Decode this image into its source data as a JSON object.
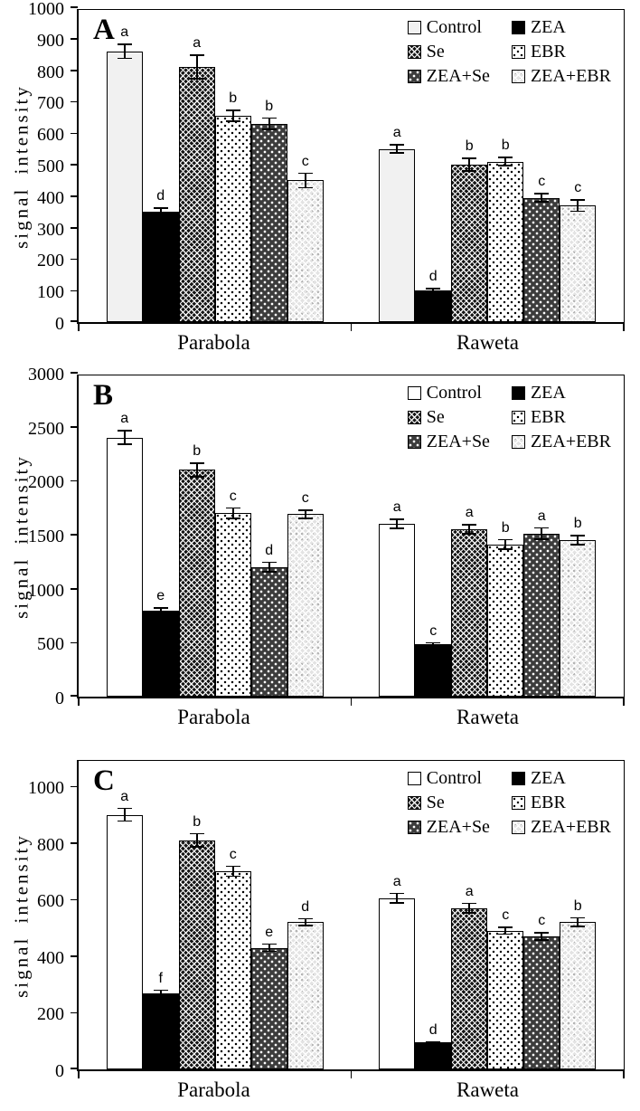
{
  "colors": {
    "ink": "#000000",
    "control_light_fill": "#f1f1f1",
    "dark_dot_fill": "#3c3c3c",
    "light_lattice_fill": "#e3e3e3"
  },
  "chart_data": [
    {
      "type": "bar",
      "panel_label": "A",
      "ylabel": "signal intensity",
      "ylim": [
        0,
        1000
      ],
      "ytick_step": 100,
      "yticks": [
        0,
        100,
        200,
        300,
        400,
        500,
        600,
        700,
        800,
        900,
        1000
      ],
      "categories": [
        "Parabola",
        "Raweta"
      ],
      "legend_position": "top-right",
      "grid": false,
      "series": [
        {
          "name": "Control",
          "pattern": "light-solid",
          "values": [
            860,
            550
          ],
          "errors": [
            25,
            15
          ],
          "sig_letters": [
            "a",
            "a"
          ]
        },
        {
          "name": "ZEA",
          "pattern": "solid-black",
          "values": [
            350,
            100
          ],
          "errors": [
            15,
            8
          ],
          "sig_letters": [
            "d",
            "d"
          ]
        },
        {
          "name": "Se",
          "pattern": "dark-diamond-hatch",
          "values": [
            810,
            500
          ],
          "errors": [
            40,
            22
          ],
          "sig_letters": [
            "a",
            "b"
          ]
        },
        {
          "name": "EBR",
          "pattern": "white-black-dots",
          "values": [
            655,
            510
          ],
          "errors": [
            20,
            15
          ],
          "sig_letters": [
            "b",
            "b"
          ]
        },
        {
          "name": "ZEA+Se",
          "pattern": "dark-white-dots",
          "values": [
            630,
            395
          ],
          "errors": [
            20,
            15
          ],
          "sig_letters": [
            "b",
            "c"
          ]
        },
        {
          "name": "ZEA+EBR",
          "pattern": "light-diamond-lattice",
          "values": [
            450,
            370
          ],
          "errors": [
            25,
            20
          ],
          "sig_letters": [
            "c",
            "c"
          ]
        }
      ]
    },
    {
      "type": "bar",
      "panel_label": "B",
      "ylabel": "signal intensity",
      "ylim": [
        0,
        3000
      ],
      "ytick_step": 500,
      "yticks": [
        0,
        500,
        1000,
        1500,
        2000,
        2500,
        3000
      ],
      "categories": [
        "Parabola",
        "Raweta"
      ],
      "legend_position": "top-right",
      "grid": false,
      "series": [
        {
          "name": "Control",
          "pattern": "white-solid",
          "values": [
            2400,
            1600
          ],
          "errors": [
            70,
            50
          ],
          "sig_letters": [
            "a",
            "a"
          ]
        },
        {
          "name": "ZEA",
          "pattern": "solid-black",
          "values": [
            800,
            490
          ],
          "errors": [
            30,
            15
          ],
          "sig_letters": [
            "e",
            "c"
          ]
        },
        {
          "name": "Se",
          "pattern": "dark-diamond-hatch",
          "values": [
            2100,
            1550
          ],
          "errors": [
            70,
            50
          ],
          "sig_letters": [
            "b",
            "a"
          ]
        },
        {
          "name": "EBR",
          "pattern": "white-black-dots",
          "values": [
            1700,
            1410
          ],
          "errors": [
            55,
            50
          ],
          "sig_letters": [
            "c",
            "b"
          ]
        },
        {
          "name": "ZEA+Se",
          "pattern": "dark-white-dots",
          "values": [
            1200,
            1510
          ],
          "errors": [
            50,
            60
          ],
          "sig_letters": [
            "d",
            "a"
          ]
        },
        {
          "name": "ZEA+EBR",
          "pattern": "light-diamond-lattice",
          "values": [
            1690,
            1450
          ],
          "errors": [
            45,
            50
          ],
          "sig_letters": [
            "c",
            "b"
          ]
        }
      ]
    },
    {
      "type": "bar",
      "panel_label": "C",
      "ylabel": "signal intensity",
      "ylim": [
        0,
        1100
      ],
      "ytick_step": 200,
      "yticks": [
        0,
        200,
        400,
        600,
        800,
        1000
      ],
      "categories": [
        "Parabola",
        "Raweta"
      ],
      "legend_position": "top-right",
      "grid": false,
      "series": [
        {
          "name": "Control",
          "pattern": "white-solid",
          "values": [
            900,
            605
          ],
          "errors": [
            25,
            20
          ],
          "sig_letters": [
            "a",
            "a"
          ]
        },
        {
          "name": "ZEA",
          "pattern": "solid-black",
          "values": [
            270,
            95
          ],
          "errors": [
            12,
            5
          ],
          "sig_letters": [
            "f",
            "d"
          ]
        },
        {
          "name": "Se",
          "pattern": "dark-diamond-hatch",
          "values": [
            810,
            570
          ],
          "errors": [
            25,
            20
          ],
          "sig_letters": [
            "b",
            "a"
          ]
        },
        {
          "name": "EBR",
          "pattern": "white-black-dots",
          "values": [
            700,
            490
          ],
          "errors": [
            20,
            15
          ],
          "sig_letters": [
            "c",
            "c"
          ]
        },
        {
          "name": "ZEA+Se",
          "pattern": "dark-white-dots",
          "values": [
            430,
            470
          ],
          "errors": [
            15,
            15
          ],
          "sig_letters": [
            "e",
            "c"
          ]
        },
        {
          "name": "ZEA+EBR",
          "pattern": "light-diamond-lattice",
          "values": [
            520,
            520
          ],
          "errors": [
            15,
            18
          ],
          "sig_letters": [
            "d",
            "b"
          ]
        }
      ]
    }
  ]
}
